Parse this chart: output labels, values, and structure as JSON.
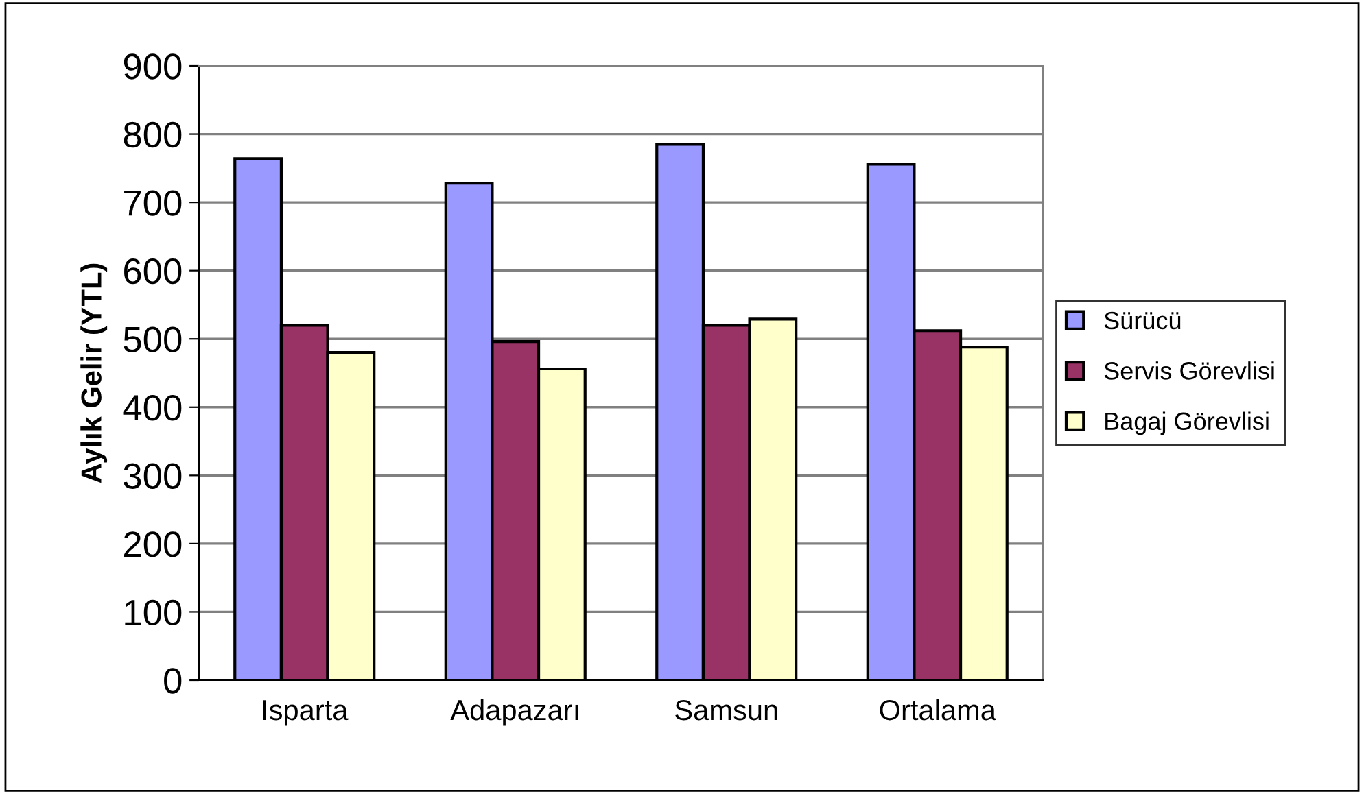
{
  "chart_data": {
    "type": "bar",
    "ylabel": "Aylık Gelir (YTL)",
    "categories": [
      "Isparta",
      "Adapazarı",
      "Samsun",
      "Ortalama"
    ],
    "series": [
      {
        "name": "Sürücü",
        "color": "#9999ff",
        "values": [
          764,
          728,
          785,
          756
        ]
      },
      {
        "name": "Servis Görevlisi",
        "color": "#993366",
        "values": [
          520,
          496,
          520,
          512
        ]
      },
      {
        "name": "Bagaj Görevlisi",
        "color": "#ffffcc",
        "values": [
          480,
          456,
          529,
          488
        ]
      }
    ],
    "ylim": [
      0,
      900
    ],
    "yticks": [
      0,
      100,
      200,
      300,
      400,
      500,
      600,
      700,
      800,
      900
    ],
    "grid": "y",
    "legend": "right"
  }
}
